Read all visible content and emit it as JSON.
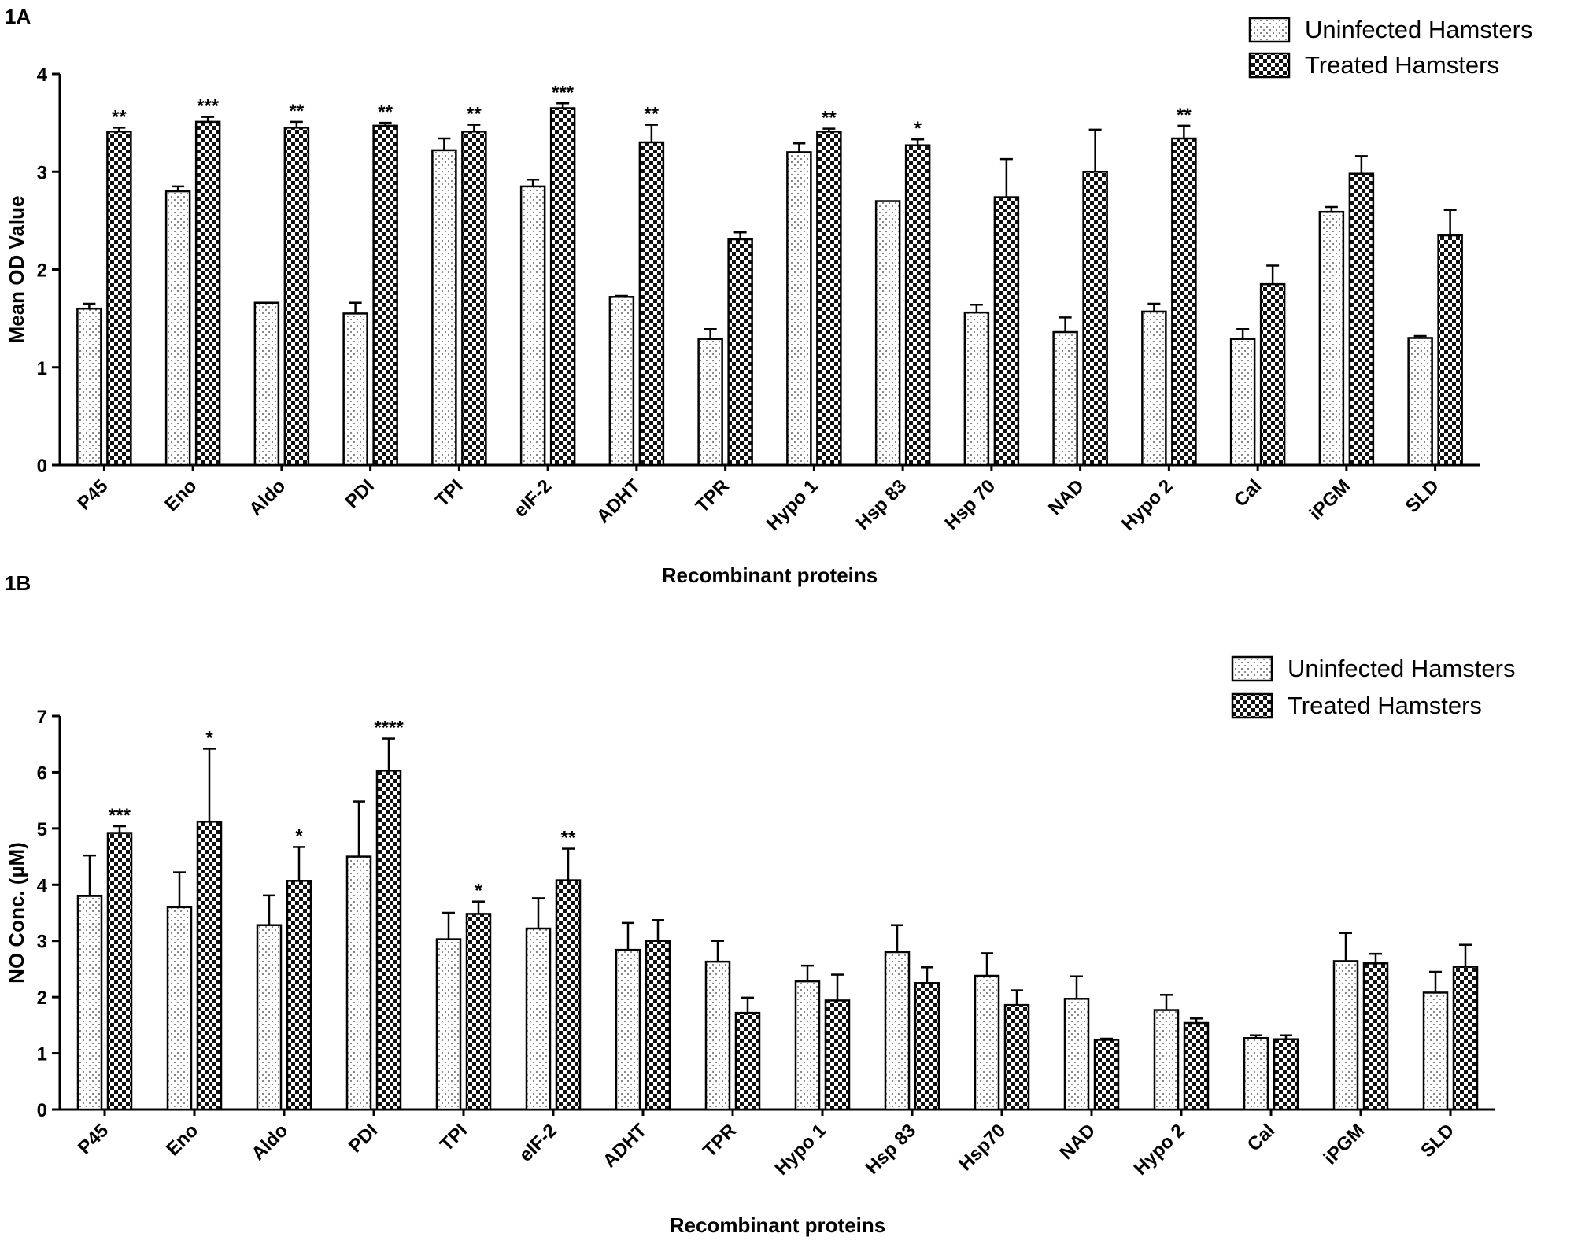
{
  "chart_data": [
    {
      "panel": "1A",
      "type": "bar",
      "xlabel": "Recombinant proteins",
      "ylabel": "Mean OD Value",
      "ylim": [
        0,
        4
      ],
      "yticks": [
        0,
        1,
        2,
        3,
        4
      ],
      "legend_position": "top-right",
      "categories": [
        "P45",
        "Eno",
        "Aldo",
        "PDI",
        "TPI",
        "eIF-2",
        "ADHT",
        "TPR",
        "Hypo 1",
        "Hsp 83",
        "Hsp 70",
        "NAD",
        "Hypo 2",
        "Cal",
        "iPGM",
        "SLD"
      ],
      "series": [
        {
          "name": "Uninfected Hamsters",
          "pattern": "dots",
          "values": [
            1.6,
            2.8,
            1.66,
            1.55,
            3.22,
            2.85,
            1.72,
            1.29,
            3.2,
            2.7,
            1.56,
            1.36,
            1.57,
            1.29,
            2.59,
            1.3
          ],
          "errors": [
            0.05,
            0.05,
            0,
            0.11,
            0.12,
            0.07,
            0.01,
            0.1,
            0.09,
            0,
            0.08,
            0.15,
            0.08,
            0.1,
            0.05,
            0.02
          ]
        },
        {
          "name": "Treated Hamsters",
          "pattern": "checker",
          "values": [
            3.41,
            3.51,
            3.45,
            3.47,
            3.41,
            3.65,
            3.3,
            2.31,
            3.41,
            3.27,
            2.74,
            3.0,
            3.34,
            1.85,
            2.98,
            2.35
          ],
          "errors": [
            0.04,
            0.05,
            0.06,
            0.03,
            0.07,
            0.05,
            0.18,
            0.07,
            0.03,
            0.06,
            0.39,
            0.43,
            0.13,
            0.19,
            0.18,
            0.26
          ]
        }
      ],
      "significance": [
        "**",
        "***",
        "**",
        "**",
        "**",
        "***",
        "**",
        "",
        "**",
        "*",
        "",
        "",
        "**",
        "",
        "",
        ""
      ]
    },
    {
      "panel": "1B",
      "type": "bar",
      "xlabel": "Recombinant proteins",
      "ylabel": "NO Conc. (µM)",
      "ylim": [
        0,
        7
      ],
      "yticks": [
        0,
        1,
        2,
        3,
        4,
        5,
        6,
        7
      ],
      "legend_position": "top-right",
      "categories": [
        "P45",
        "Eno",
        "Aldo",
        "PDI",
        "TPI",
        "eIF-2",
        "ADHT",
        "TPR",
        "Hypo 1",
        "Hsp 83",
        "Hsp70",
        "NAD",
        "Hypo 2",
        "Cal",
        "iPGM",
        "SLD"
      ],
      "series": [
        {
          "name": "Uninfected Hamsters",
          "pattern": "dots",
          "values": [
            3.8,
            3.6,
            3.28,
            4.5,
            3.03,
            3.22,
            2.84,
            2.63,
            2.28,
            2.8,
            2.38,
            1.97,
            1.77,
            1.27,
            2.64,
            2.08
          ],
          "errors": [
            0.72,
            0.62,
            0.53,
            0.98,
            0.47,
            0.54,
            0.48,
            0.37,
            0.28,
            0.48,
            0.4,
            0.4,
            0.27,
            0.05,
            0.5,
            0.37
          ]
        },
        {
          "name": "Treated Hamsters",
          "pattern": "checker",
          "values": [
            4.92,
            5.12,
            4.07,
            6.03,
            3.48,
            4.08,
            3.0,
            1.72,
            1.94,
            2.25,
            1.86,
            1.24,
            1.54,
            1.25,
            2.6,
            2.54
          ],
          "errors": [
            0.12,
            1.3,
            0.6,
            0.57,
            0.22,
            0.56,
            0.37,
            0.27,
            0.46,
            0.28,
            0.26,
            0.02,
            0.08,
            0.07,
            0.17,
            0.39
          ]
        }
      ],
      "significance": [
        "***",
        "*",
        "*",
        "****",
        "*",
        "**",
        "",
        "",
        "",
        "",
        "",
        "",
        "",
        "",
        "",
        ""
      ]
    }
  ]
}
